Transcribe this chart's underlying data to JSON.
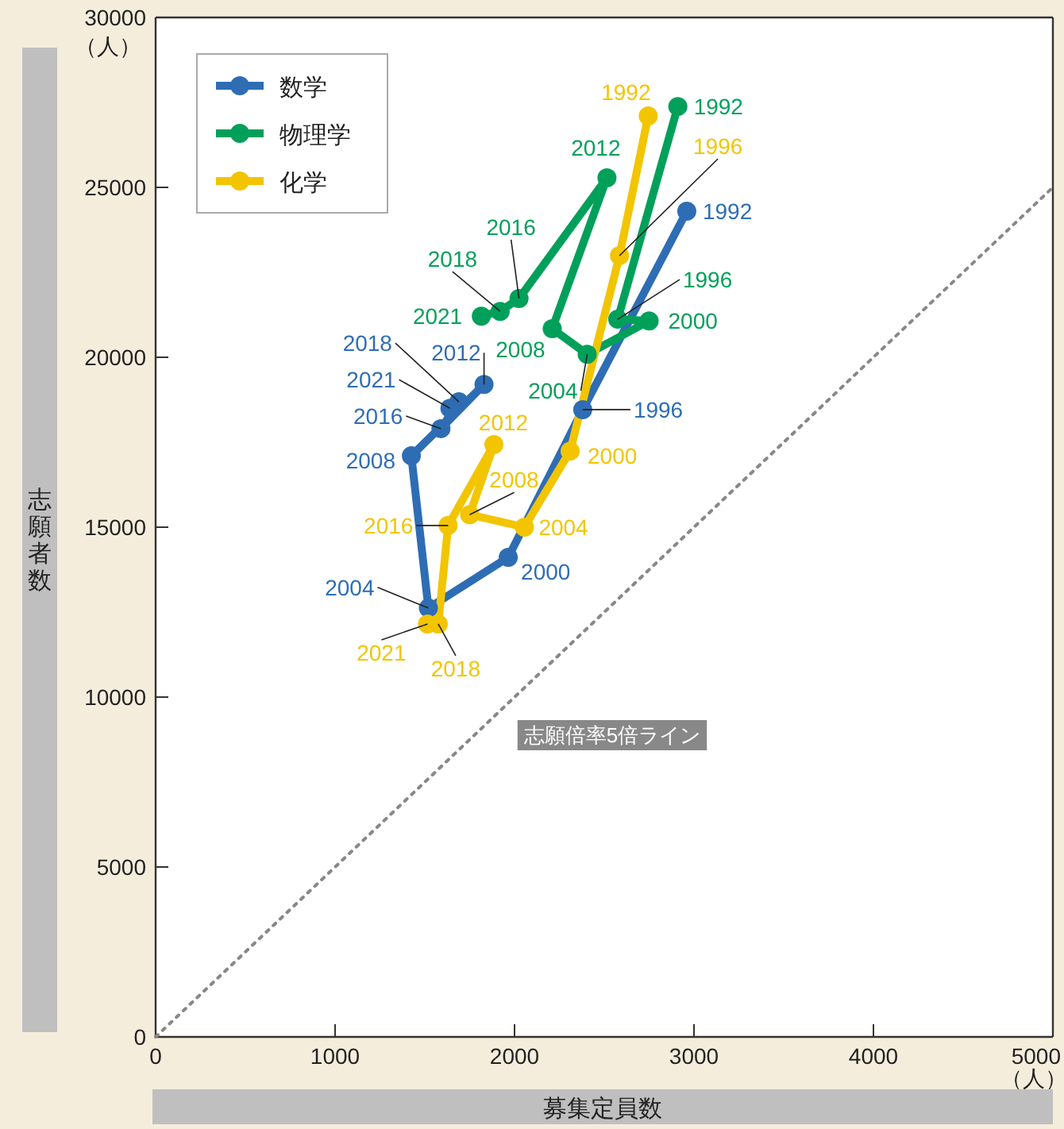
{
  "chart_data": {
    "type": "line",
    "xlabel": "募集定員数",
    "ylabel": "志願者数",
    "annotations": [
      "（人）",
      "（人）",
      {
        "text": "1992",
        "x": 2960,
        "y": 24300
      },
      {
        "text": "1996",
        "x": 2380,
        "y": 18460
      },
      {
        "text": "2000",
        "x": 1965,
        "y": 14110
      },
      {
        "text": "2004",
        "x": 1520,
        "y": 12620
      },
      {
        "text": "2008",
        "x": 1425,
        "y": 17100
      },
      {
        "text": "2012",
        "x": 1830,
        "y": 19200
      },
      {
        "text": "2016",
        "x": 1590,
        "y": 17900
      },
      {
        "text": "2018",
        "x": 1690,
        "y": 18690
      },
      {
        "text": "2021",
        "x": 1640,
        "y": 18500
      },
      {
        "text": "1992",
        "x": 2910,
        "y": 27380
      },
      {
        "text": "1996",
        "x": 2575,
        "y": 21120
      },
      {
        "text": "2000",
        "x": 2750,
        "y": 21070
      },
      {
        "text": "2004",
        "x": 2405,
        "y": 20090
      },
      {
        "text": "2008",
        "x": 2210,
        "y": 20840
      },
      {
        "text": "2012",
        "x": 2515,
        "y": 25280
      },
      {
        "text": "2016",
        "x": 2025,
        "y": 21730
      },
      {
        "text": "2018",
        "x": 1920,
        "y": 21350
      },
      {
        "text": "2021",
        "x": 1815,
        "y": 21210
      },
      {
        "text": "1992",
        "x": 2745,
        "y": 27100
      },
      {
        "text": "1996",
        "x": 2585,
        "y": 22990
      },
      {
        "text": "2000",
        "x": 2310,
        "y": 17240
      },
      {
        "text": "2004",
        "x": 2055,
        "y": 15000
      },
      {
        "text": "2008",
        "x": 1750,
        "y": 15370
      },
      {
        "text": "2012",
        "x": 1885,
        "y": 17430
      },
      {
        "text": "2016",
        "x": 1630,
        "y": 15050
      },
      {
        "text": "2018",
        "x": 1575,
        "y": 12150
      },
      {
        "text": "2021",
        "x": 1515,
        "y": 12150
      }
    ],
    "xlim": [
      0,
      5000
    ],
    "ylim": [
      0,
      30000
    ],
    "xticks": [
      0,
      1000,
      2000,
      3000,
      4000,
      5000
    ],
    "yticks": [
      0,
      5000,
      10000,
      15000,
      20000,
      25000,
      30000
    ],
    "grid": false,
    "legend": "top left",
    "marker": "circle",
    "line_style": "solid",
    "series": [
      {
        "name": "数学",
        "color": "#2e6db4",
        "x": [
          2960,
          2380,
          1965,
          1520,
          1425,
          1830,
          1590,
          1690,
          1640
        ],
        "values": [
          24300,
          18460,
          14110,
          12620,
          17100,
          19200,
          17900,
          18690,
          18500
        ]
      },
      {
        "name": "物理学",
        "color": "#00a05a",
        "x": [
          2910,
          2575,
          2750,
          2405,
          2210,
          2515,
          2025,
          1920,
          1815
        ],
        "values": [
          27380,
          21120,
          21070,
          20090,
          20840,
          25280,
          21730,
          21350,
          21210
        ]
      },
      {
        "name": "化学",
        "color": "#f2c500",
        "x": [
          2745,
          2585,
          2310,
          2055,
          1750,
          1885,
          1630,
          1575,
          1515
        ],
        "values": [
          27100,
          22990,
          17240,
          15000,
          15370,
          17430,
          15050,
          12150,
          12150
        ]
      },
      {
        "name": "志願倍率5倍ライン",
        "color": "#888888",
        "x": [
          0,
          5000
        ],
        "values": [
          0,
          25000
        ],
        "marker": "none",
        "line_style": "dotted"
      }
    ]
  }
}
